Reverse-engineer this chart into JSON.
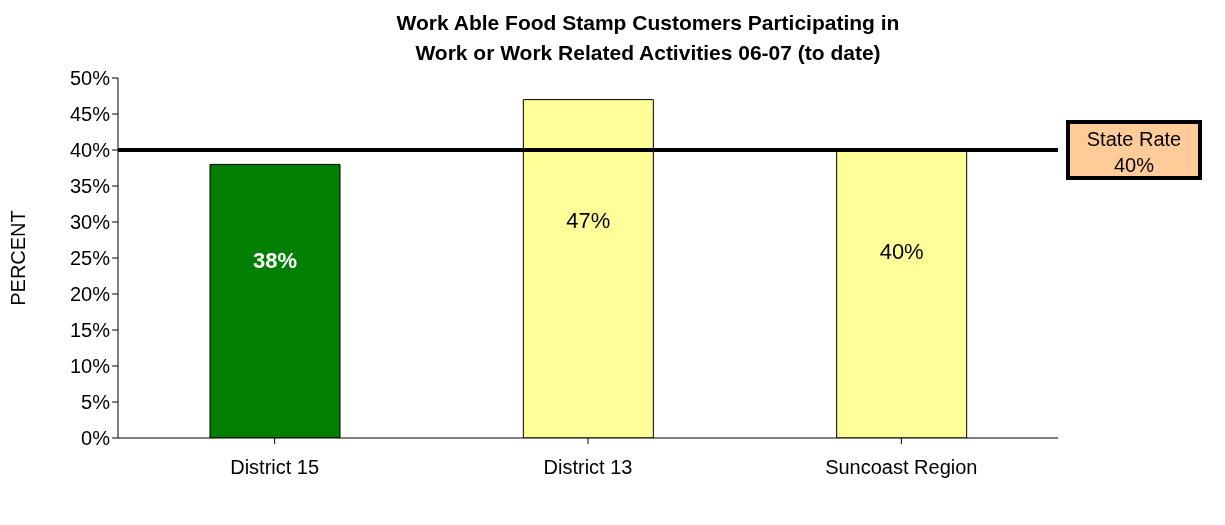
{
  "chart_data": {
    "type": "bar",
    "title": "Work Able Food Stamp Customers Participating in\nWork or Work Related Activities 06-07 (to date)",
    "ylabel": "PERCENT",
    "categories": [
      "District 15",
      "District 13",
      "Suncoast Region"
    ],
    "values": [
      38,
      47,
      40
    ],
    "colors": [
      "#007f00",
      "#ffff99",
      "#ffff99"
    ],
    "value_labels": [
      "38%",
      "47%",
      "40%"
    ],
    "ylim": [
      0,
      50
    ],
    "yticks": [
      {
        "value": 0,
        "label": "0%"
      },
      {
        "value": 5,
        "label": "5%"
      },
      {
        "value": 10,
        "label": "10%"
      },
      {
        "value": 15,
        "label": "15%"
      },
      {
        "value": 20,
        "label": "20%"
      },
      {
        "value": 25,
        "label": "25%"
      },
      {
        "value": 30,
        "label": "30%"
      },
      {
        "value": 35,
        "label": "35%"
      },
      {
        "value": 40,
        "label": "40%"
      },
      {
        "value": 45,
        "label": "45%"
      },
      {
        "value": 50,
        "label": "50%"
      }
    ],
    "ref_lines": [
      {
        "axis": "y",
        "value": 40,
        "label": "State Rate\n40%",
        "color": "#000000"
      }
    ],
    "grid": false,
    "legend": false
  }
}
